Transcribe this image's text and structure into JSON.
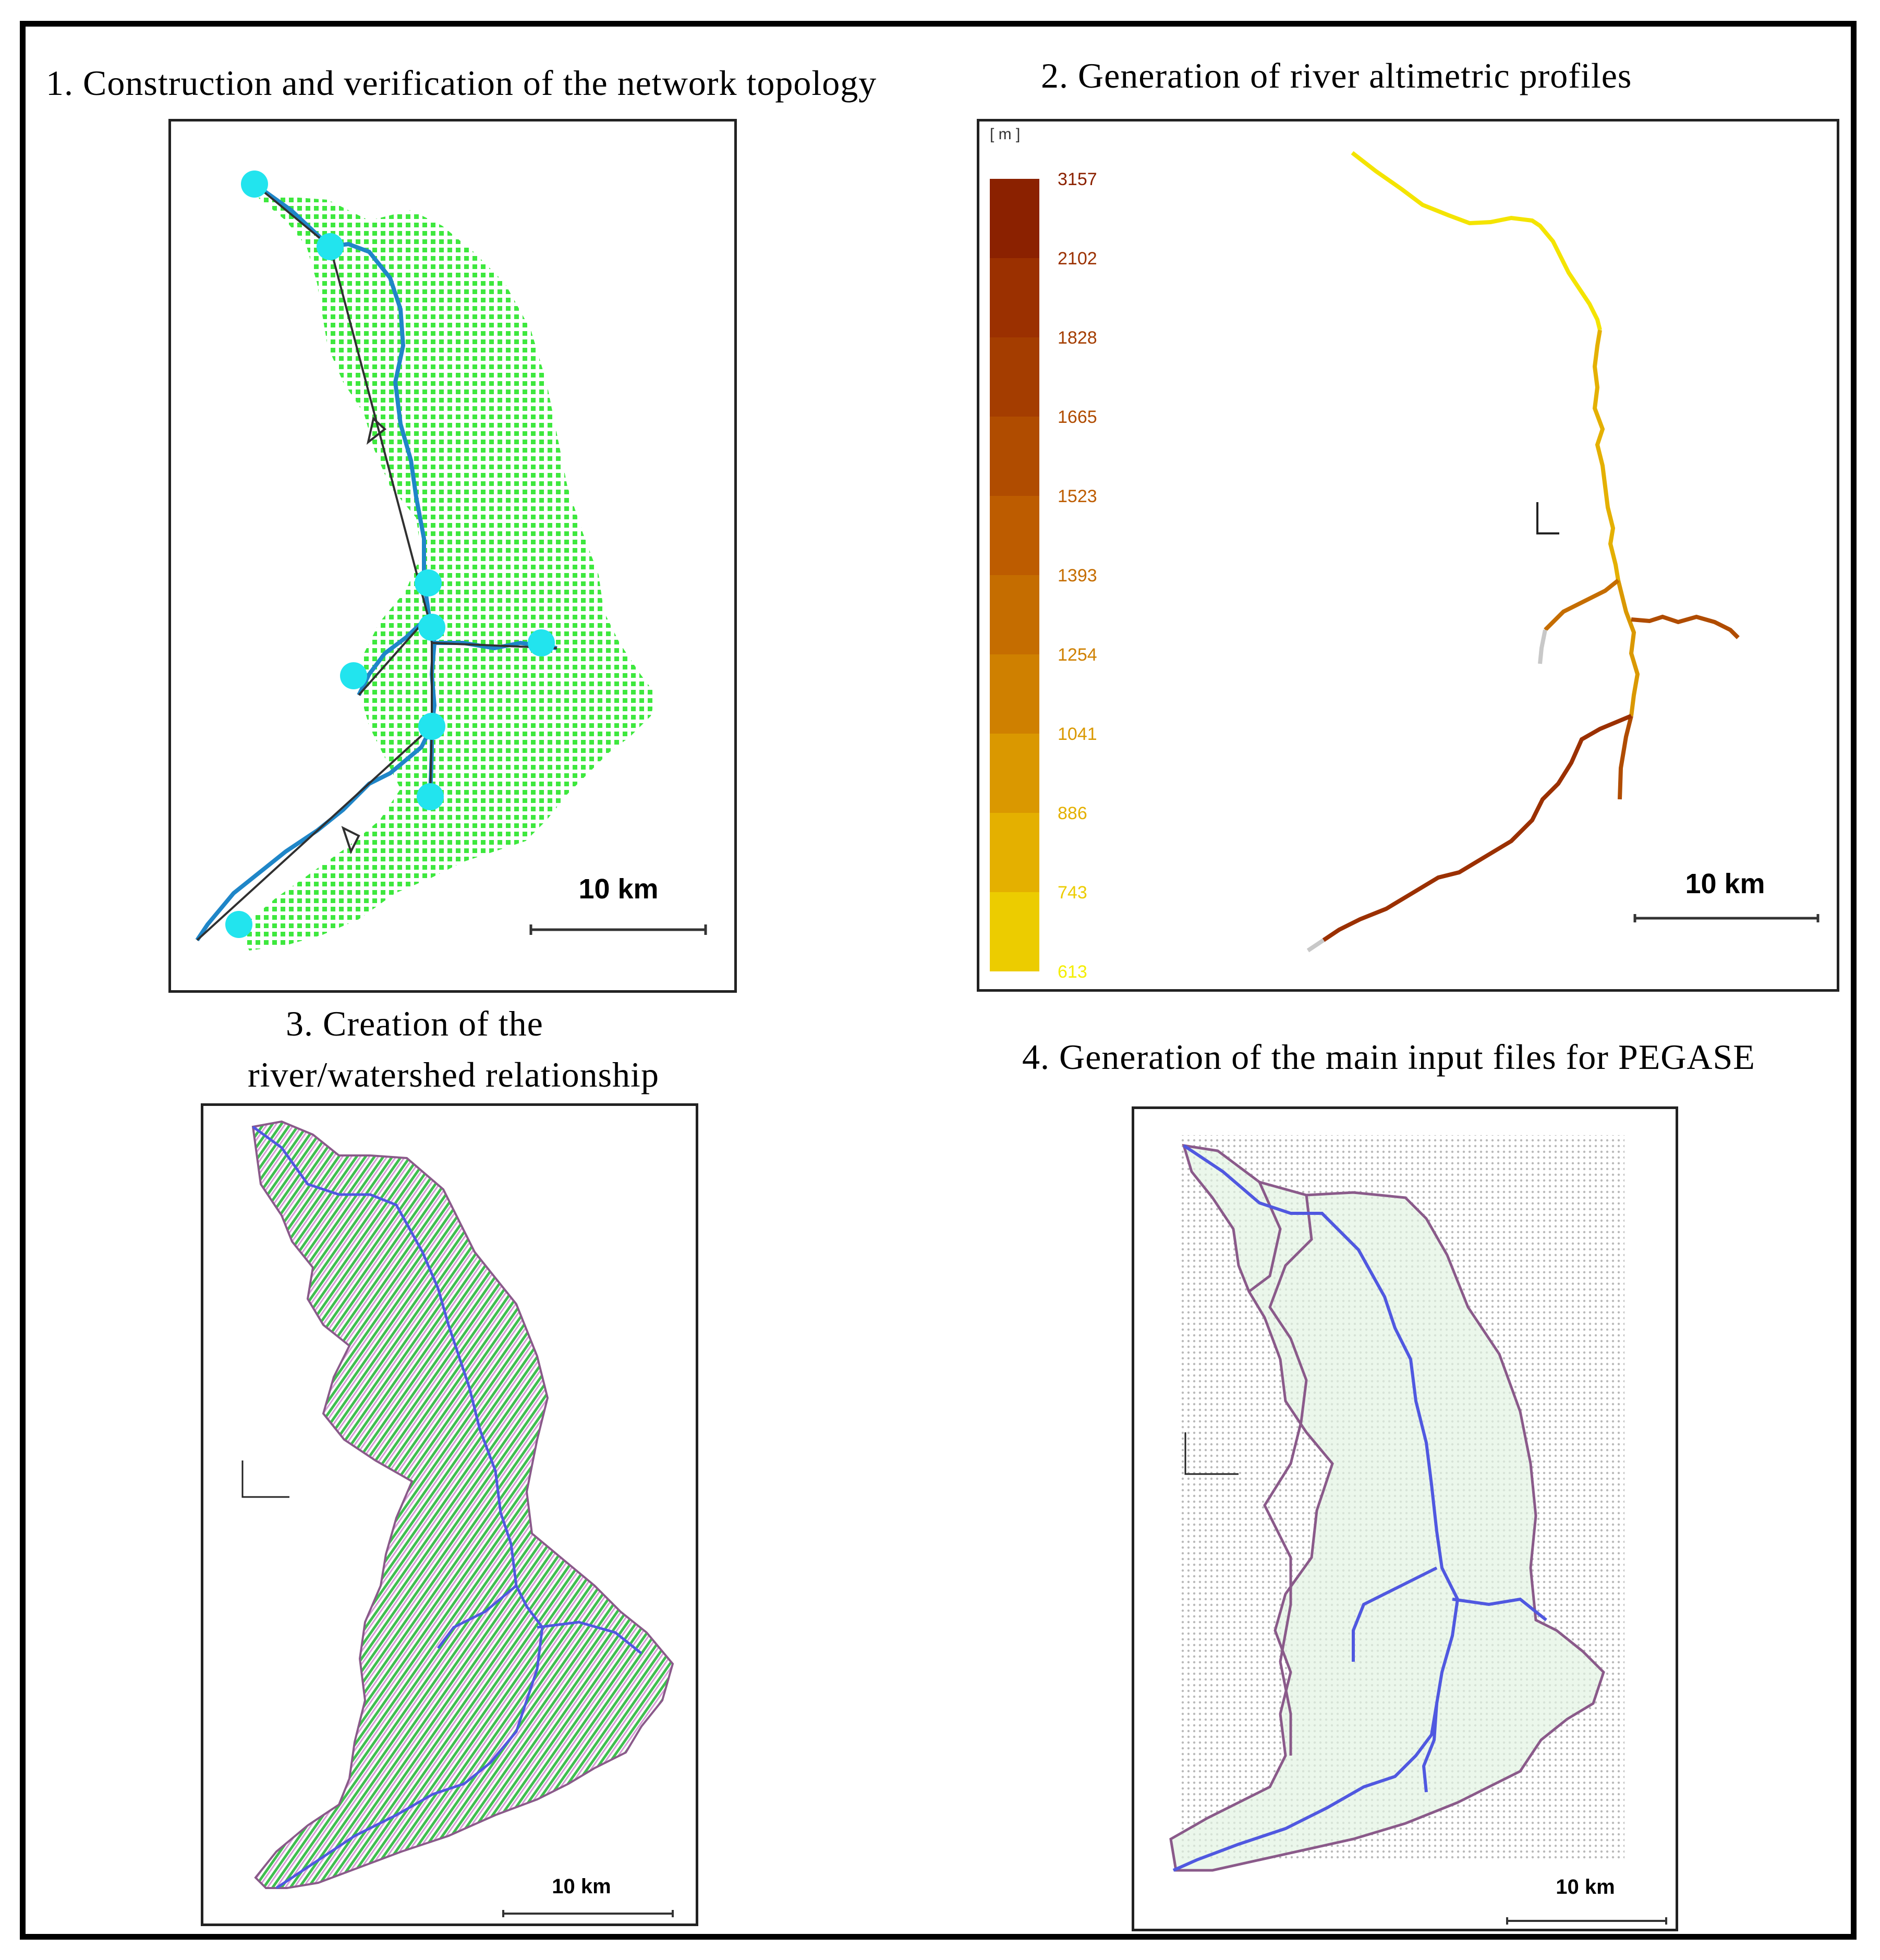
{
  "panels": [
    {
      "title": "1. Construction  and verification  of the network  topology",
      "scale_label": "10 km"
    },
    {
      "title": "2. Generation  of river  altimetric  profiles",
      "scale_label": "10 km",
      "legend_unit": "[ m ]",
      "legend_values": [
        "3157",
        "2102",
        "1828",
        "1665",
        "1523",
        "1393",
        "1254",
        "1041",
        "886",
        "743",
        "613"
      ],
      "legend_colors": [
        "#8b2100",
        "#9b3000",
        "#a43d00",
        "#b04c00",
        "#bd5c00",
        "#c56d00",
        "#cf8000",
        "#da9800",
        "#e4b000",
        "#eccc00",
        "#f4ee00"
      ]
    },
    {
      "title_line1": "3. Creation  of the",
      "title_line2": "river/watershed  relationship",
      "scale_label": "10 km"
    },
    {
      "title": "4. Generation  of the main  input  files  for  PEGASE",
      "scale_label": "10 km"
    }
  ],
  "colors": {
    "node": "#22e4ee",
    "grid_green": "#3ee83e",
    "river_blue": "#1f86c8",
    "river_violet": "#5058e0",
    "boundary": "#8a5a8a",
    "watershed": "#d79ad6"
  }
}
